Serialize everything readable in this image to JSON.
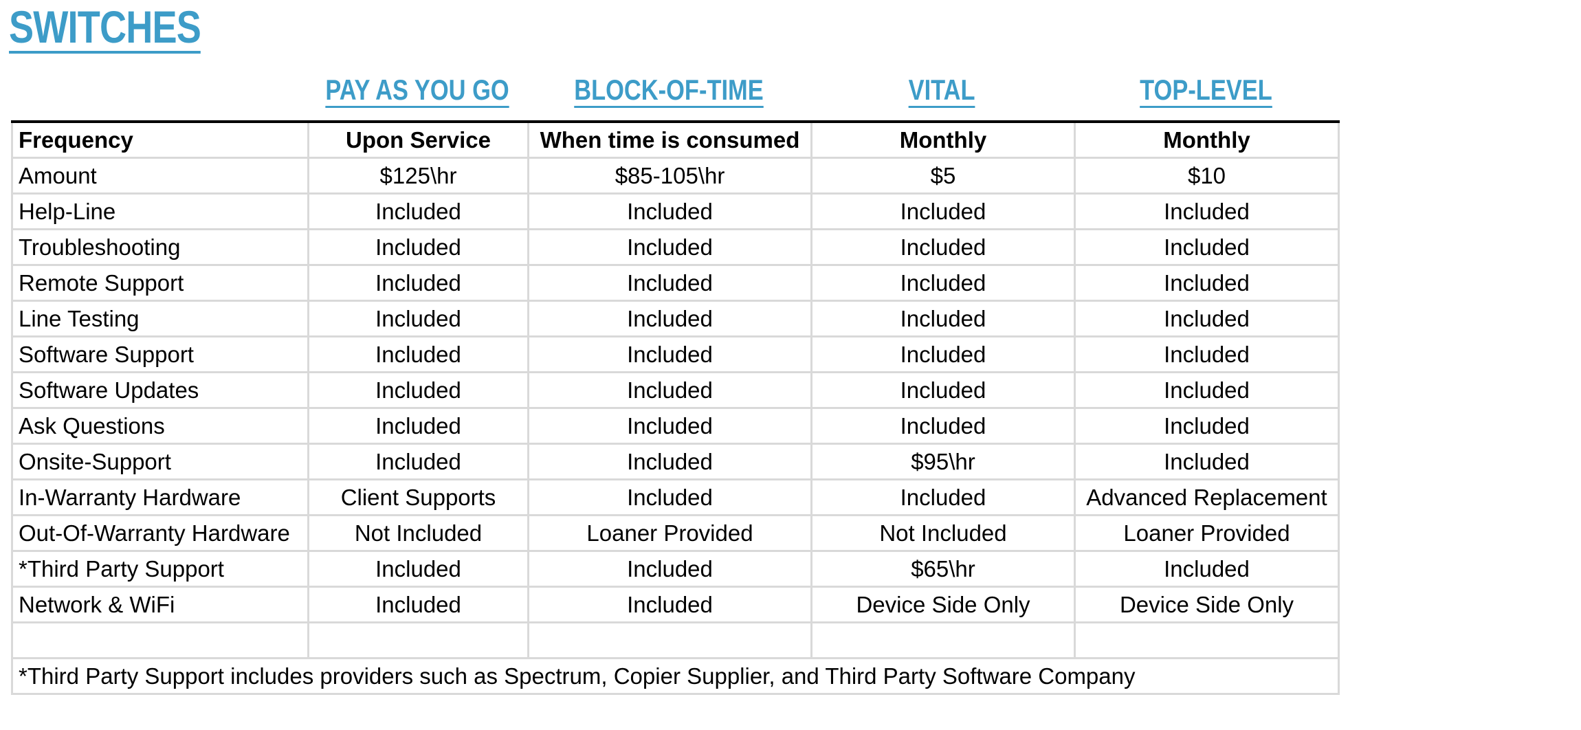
{
  "title": "SWITCHES",
  "plans": [
    "PAY AS YOU GO",
    "BLOCK-OF-TIME",
    "VITAL",
    "TOP-LEVEL"
  ],
  "table": {
    "header": {
      "label": "Frequency",
      "values": [
        "Upon Service",
        "When time is consumed",
        "Monthly",
        "Monthly"
      ]
    },
    "rows": [
      {
        "label": "Amount",
        "values": [
          "$125\\hr",
          "$85-105\\hr",
          "$5",
          "$10"
        ]
      },
      {
        "label": "Help-Line",
        "values": [
          "Included",
          "Included",
          "Included",
          "Included"
        ]
      },
      {
        "label": "Troubleshooting",
        "values": [
          "Included",
          "Included",
          "Included",
          "Included"
        ]
      },
      {
        "label": "Remote Support",
        "values": [
          "Included",
          "Included",
          "Included",
          "Included"
        ]
      },
      {
        "label": "Line Testing",
        "values": [
          "Included",
          "Included",
          "Included",
          "Included"
        ]
      },
      {
        "label": "Software Support",
        "values": [
          "Included",
          "Included",
          "Included",
          "Included"
        ]
      },
      {
        "label": "Software Updates",
        "values": [
          "Included",
          "Included",
          "Included",
          "Included"
        ]
      },
      {
        "label": "Ask Questions",
        "values": [
          "Included",
          "Included",
          "Included",
          "Included"
        ]
      },
      {
        "label": "Onsite-Support",
        "values": [
          "Included",
          "Included",
          "$95\\hr",
          "Included"
        ]
      },
      {
        "label": "In-Warranty Hardware",
        "values": [
          "Client Supports",
          "Included",
          "Included",
          "Advanced Replacement"
        ]
      },
      {
        "label": "Out-Of-Warranty Hardware",
        "values": [
          "Not Included",
          "Loaner Provided",
          "Not Included",
          "Loaner Provided"
        ]
      },
      {
        "label": "*Third Party Support",
        "values": [
          "Included",
          "Included",
          "$65\\hr",
          "Included"
        ]
      },
      {
        "label": "Network & WiFi",
        "values": [
          "Included",
          "Included",
          "Device Side Only",
          "Device Side Only"
        ]
      }
    ],
    "footnote": "*Third Party Support includes providers such as Spectrum, Copier Supplier, and Third Party Software Company"
  },
  "colors": {
    "accent": "#3d9cc8",
    "grid_line": "#d9d9d9",
    "header_rule": "#000000"
  }
}
